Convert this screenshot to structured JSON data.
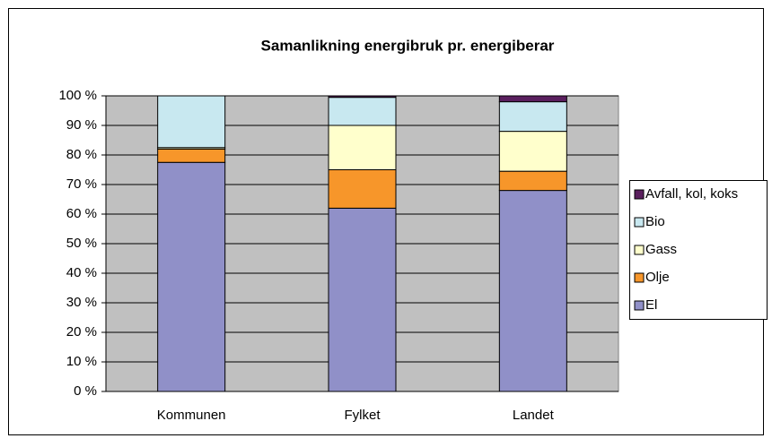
{
  "chart_data": {
    "type": "stacked_bar",
    "title": "Samanlikning energibruk pr. energiberar",
    "categories": [
      "Kommunen",
      "Fylket",
      "Landet"
    ],
    "series": [
      {
        "name": "El",
        "color": "#9090c8",
        "values": [
          77.5,
          62,
          68
        ]
      },
      {
        "name": "Olje",
        "color": "#f7962a",
        "values": [
          4.5,
          13,
          6.5
        ]
      },
      {
        "name": "Gass",
        "color": "#ffffcc",
        "values": [
          0.5,
          15,
          13.5
        ]
      },
      {
        "name": "Bio",
        "color": "#c8e8f0",
        "values": [
          17.5,
          9.5,
          10
        ]
      },
      {
        "name": "Avfall, kol, koks",
        "color": "#5a1f5e",
        "values": [
          0,
          0.5,
          2
        ]
      }
    ],
    "ylim": [
      0,
      100
    ],
    "yticks": [
      {
        "value": 0,
        "label": "0 %"
      },
      {
        "value": 10,
        "label": "10 %"
      },
      {
        "value": 20,
        "label": "20 %"
      },
      {
        "value": 30,
        "label": "30 %"
      },
      {
        "value": 40,
        "label": "40 %"
      },
      {
        "value": 50,
        "label": "50 %"
      },
      {
        "value": 60,
        "label": "60 %"
      },
      {
        "value": 70,
        "label": "70 %"
      },
      {
        "value": 80,
        "label": "80 %"
      },
      {
        "value": 90,
        "label": "90 %"
      },
      {
        "value": 100,
        "label": "100 %"
      }
    ],
    "grid": true,
    "legend": "right"
  }
}
